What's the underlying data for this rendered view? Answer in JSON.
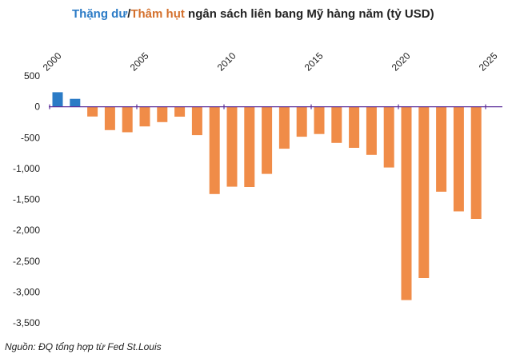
{
  "title": {
    "part1": "Thặng dư",
    "sep": "/",
    "part2": "Thâm hụt",
    "rest": " ngân sách liên bang Mỹ hàng năm (tỷ USD)"
  },
  "colors": {
    "surplus": "#2b7bc6",
    "deficit": "#f08c48",
    "zero_line": "#5b2d99",
    "text": "#222222"
  },
  "source": "Nguồn: ĐQ tổng hợp từ Fed St.Louis",
  "chart_data": {
    "type": "bar",
    "x": [
      2000,
      2001,
      2002,
      2003,
      2004,
      2005,
      2006,
      2007,
      2008,
      2009,
      2010,
      2011,
      2012,
      2013,
      2014,
      2015,
      2016,
      2017,
      2018,
      2019,
      2020,
      2021,
      2022,
      2023,
      2024
    ],
    "values": [
      236,
      128,
      -158,
      -378,
      -413,
      -318,
      -248,
      -161,
      -459,
      -1413,
      -1294,
      -1300,
      -1087,
      -680,
      -485,
      -442,
      -585,
      -665,
      -779,
      -984,
      -3132,
      -2775,
      -1376,
      -1695,
      -1817
    ],
    "ylim": [
      -3500,
      500
    ],
    "yticks": [
      500,
      0,
      -500,
      -1000,
      -1500,
      -2000,
      -2500,
      -3000,
      -3500
    ],
    "ytick_labels": [
      "500",
      "0",
      "-500",
      "-1,000",
      "-1,500",
      "-2,000",
      "-2,500",
      "-3,000",
      "-3,500"
    ],
    "xticks": [
      2000,
      2005,
      2010,
      2015,
      2020,
      2025
    ],
    "xtick_labels": [
      "2000",
      "2005",
      "2010",
      "2015",
      "2020",
      "2025"
    ],
    "xlabel": "",
    "ylabel": "",
    "grid": false
  }
}
